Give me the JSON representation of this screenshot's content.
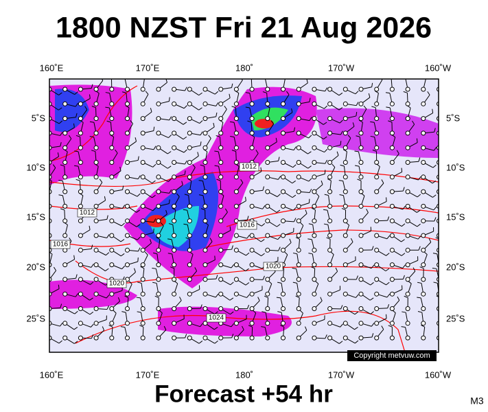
{
  "header": {
    "title": "1800 NZST Fri 21 Aug 2026"
  },
  "map": {
    "lon_labels": [
      "160˚E",
      "170˚E",
      "180˚",
      "170˚W",
      "160˚W"
    ],
    "lat_labels": [
      "5˚S",
      "10˚S",
      "15˚S",
      "20˚S",
      "25˚S"
    ],
    "isobar_labels": [
      "1012",
      "1012",
      "1016",
      "1016",
      "1020",
      "1020",
      "1024"
    ]
  },
  "copyright": "Copyright metvuw.com",
  "footer": {
    "forecast": "Forecast +54 hr",
    "code": "M3"
  }
}
